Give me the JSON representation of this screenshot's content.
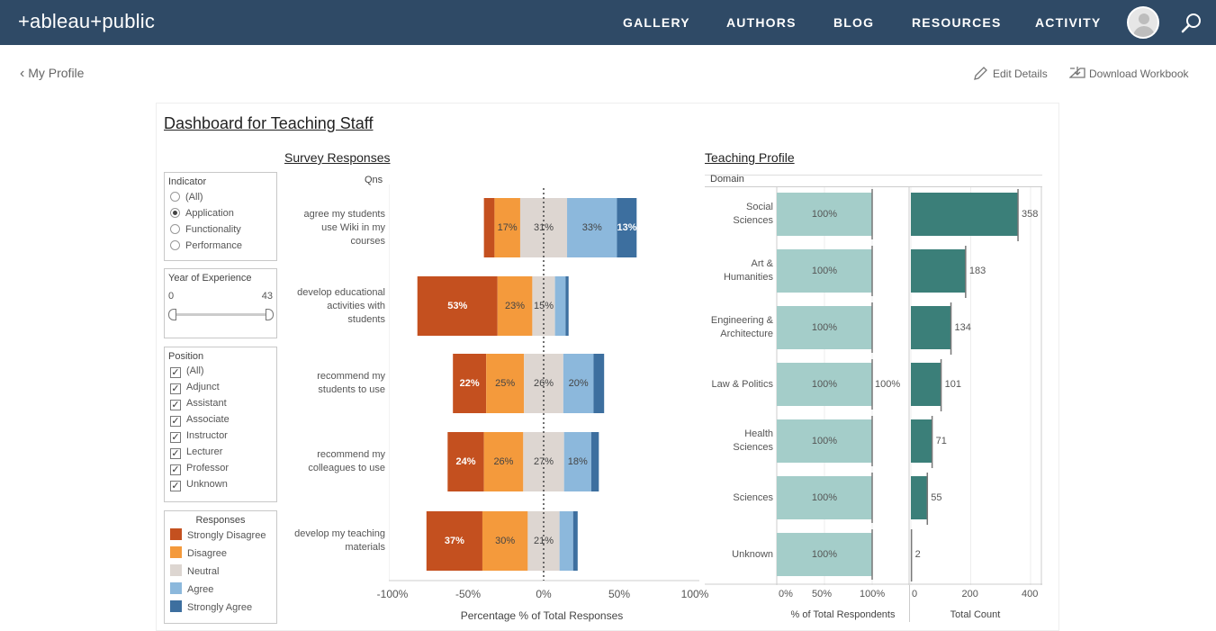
{
  "header": {
    "logo_text": "+ableau+public",
    "nav": [
      "GALLERY",
      "AUTHORS",
      "BLOG",
      "RESOURCES",
      "ACTIVITY"
    ]
  },
  "subbar": {
    "back_label": "My Profile",
    "edit_label": "Edit Details",
    "download_label": "Download Workbook"
  },
  "dashboard": {
    "title": "Dashboard for Teaching Staff",
    "survey_title": "Survey Responses",
    "profile_title": "Teaching Profile",
    "qns_header": "Qns",
    "domain_header": "Domain"
  },
  "filters": {
    "indicator": {
      "title": "Indicator",
      "options": [
        "(All)",
        "Application",
        "Functionality",
        "Performance"
      ],
      "selected": "Application"
    },
    "experience": {
      "title": "Year of Experience",
      "min": "0",
      "max": "43"
    },
    "position": {
      "title": "Position",
      "options": [
        "(All)",
        "Adjunct",
        "Assistant",
        "Associate",
        "Instructor",
        "Lecturer",
        "Professor",
        "Unknown"
      ]
    },
    "legend": {
      "title": "Responses",
      "items": [
        {
          "label": "Strongly Disagree",
          "color": "#c4501f"
        },
        {
          "label": "Disagree",
          "color": "#f49a3c"
        },
        {
          "label": "Neutral",
          "color": "#ddd6d1"
        },
        {
          "label": "Agree",
          "color": "#8cb8dc"
        },
        {
          "label": "Strongly Agree",
          "color": "#3d6f9f"
        }
      ]
    }
  },
  "survey_chart": {
    "type": "bar",
    "questions": [
      {
        "label": "agree my students use Wiki in my courses",
        "lines": [
          "agree my students",
          "use Wiki in my",
          "courses"
        ],
        "labels": [
          "",
          "17%",
          "31%",
          "33%",
          "13%"
        ],
        "seg": [
          7,
          17,
          31,
          33,
          13
        ]
      },
      {
        "label": "develop educational activities with students",
        "lines": [
          "develop educational",
          "activities with",
          "students"
        ],
        "labels": [
          "53%",
          "23%",
          "15%",
          "",
          ""
        ],
        "seg": [
          53,
          23,
          15,
          7,
          2
        ]
      },
      {
        "label": "recommend my students to use",
        "lines": [
          "recommend my",
          "students to use"
        ],
        "labels": [
          "22%",
          "25%",
          "26%",
          "20%",
          ""
        ],
        "seg": [
          22,
          25,
          26,
          20,
          7
        ]
      },
      {
        "label": "recommend my colleagues to use",
        "lines": [
          "recommend my",
          "colleagues to use"
        ],
        "labels": [
          "24%",
          "26%",
          "27%",
          "18%",
          ""
        ],
        "seg": [
          24,
          26,
          27,
          18,
          5
        ]
      },
      {
        "label": "develop my teaching materials",
        "lines": [
          "develop my teaching",
          "materials"
        ],
        "labels": [
          "37%",
          "30%",
          "21%",
          "",
          ""
        ],
        "seg": [
          37,
          30,
          21,
          9,
          3
        ]
      }
    ],
    "x_ticks": [
      "-100%",
      "-50%",
      "0%",
      "50%",
      "100%"
    ],
    "xlabel": "Percentage % of Total Responses"
  },
  "profile_chart": {
    "type": "bar",
    "domains": [
      {
        "lines": [
          "Social",
          "Sciences"
        ],
        "pct": 100,
        "pct_label": "100%",
        "count": 358,
        "count_label": "358"
      },
      {
        "lines": [
          "Art &",
          "Humanities"
        ],
        "pct": 100,
        "pct_label": "100%",
        "count": 183,
        "count_label": "183"
      },
      {
        "lines": [
          "Engineering &",
          "Architecture"
        ],
        "pct": 100,
        "pct_label": "100%",
        "count": 134,
        "count_label": "134"
      },
      {
        "lines": [
          "Law & Politics"
        ],
        "pct": 100,
        "pct_label": "100%",
        "count": 101,
        "count_label": "101"
      },
      {
        "lines": [
          "Health",
          "Sciences"
        ],
        "pct": 100,
        "pct_label": "100%",
        "count": 71,
        "count_label": "71"
      },
      {
        "lines": [
          "Sciences"
        ],
        "pct": 100,
        "pct_label": "100%",
        "count": 55,
        "count_label": "55"
      },
      {
        "lines": [
          "Unknown"
        ],
        "pct": 100,
        "pct_label": "100%",
        "count": 2,
        "count_label": "2"
      }
    ],
    "ref_label": "100%",
    "pct_ticks": [
      "0%",
      "50%",
      "100%"
    ],
    "count_ticks": [
      "0",
      "200",
      "400"
    ],
    "pct_xlabel": "% of Total Respondents",
    "count_xlabel": "Total Count",
    "colors": {
      "pct": "#a4cdc9",
      "count": "#3b7f79"
    }
  }
}
